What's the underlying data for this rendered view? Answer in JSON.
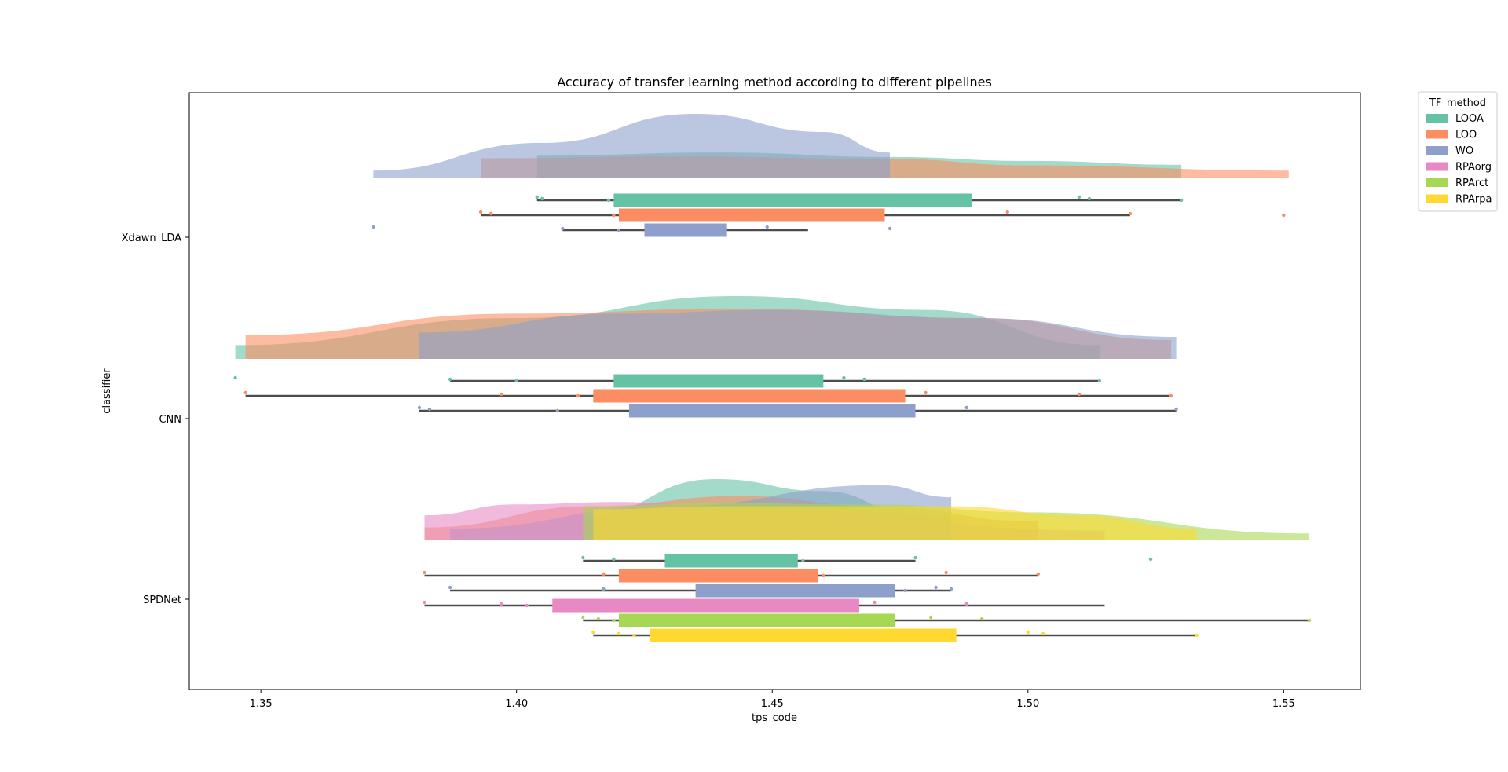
{
  "chart_data": {
    "type": "raincloud",
    "title": "Accuracy of transfer learning method according to different pipelines",
    "xlabel": "tps_code",
    "ylabel": "classifier",
    "xlim": [
      1.336,
      1.565
    ],
    "xticks": [
      1.35,
      1.4,
      1.45,
      1.5,
      1.55
    ],
    "xtick_labels": [
      "1.35",
      "1.40",
      "1.45",
      "1.50",
      "1.55"
    ],
    "categories": [
      "Xdawn_LDA",
      "CNN",
      "SPDNet"
    ],
    "legend": {
      "title": "TF_method",
      "position": "outside-top-right",
      "entries": [
        {
          "name": "LOOA",
          "color": "#66c2a5"
        },
        {
          "name": "LOO",
          "color": "#fc8d62"
        },
        {
          "name": "WO",
          "color": "#8da0cb"
        },
        {
          "name": "RPAorg",
          "color": "#e78ac3"
        },
        {
          "name": "RPArct",
          "color": "#a6d854"
        },
        {
          "name": "RPArpa",
          "color": "#ffd92f"
        }
      ]
    },
    "groups": [
      {
        "classifier": "Xdawn_LDA",
        "series": [
          {
            "name": "LOOA",
            "min": 1.404,
            "q1": 1.419,
            "q3": 1.489,
            "max": 1.53,
            "points": [
              1.404,
              1.405,
              1.418,
              1.51,
              1.512,
              1.53
            ],
            "density": [
              [
                1.404,
                0.35
              ],
              [
                1.44,
                0.4
              ],
              [
                1.473,
                0.33
              ],
              [
                1.5,
                0.27
              ],
              [
                1.53,
                0.21
              ]
            ]
          },
          {
            "name": "LOO",
            "min": 1.393,
            "q1": 1.42,
            "q3": 1.472,
            "max": 1.52,
            "points": [
              1.393,
              1.395,
              1.419,
              1.496,
              1.52,
              1.55
            ],
            "density": [
              [
                1.393,
                0.31
              ],
              [
                1.43,
                0.34
              ],
              [
                1.473,
                0.3
              ],
              [
                1.5,
                0.2
              ],
              [
                1.551,
                0.12
              ]
            ]
          },
          {
            "name": "WO",
            "min": 1.409,
            "q1": 1.425,
            "q3": 1.441,
            "max": 1.457,
            "points": [
              1.372,
              1.409,
              1.42,
              1.449,
              1.473
            ],
            "density": [
              [
                1.372,
                0.12
              ],
              [
                1.405,
                0.55
              ],
              [
                1.435,
                1.0
              ],
              [
                1.46,
                0.72
              ],
              [
                1.473,
                0.4
              ]
            ]
          }
        ]
      },
      {
        "classifier": "CNN",
        "series": [
          {
            "name": "LOOA",
            "min": 1.387,
            "q1": 1.419,
            "q3": 1.46,
            "max": 1.514,
            "points": [
              1.345,
              1.387,
              1.4,
              1.464,
              1.468,
              1.514
            ],
            "density": [
              [
                1.345,
                0.22
              ],
              [
                1.4,
                0.65
              ],
              [
                1.443,
                1.0
              ],
              [
                1.48,
                0.78
              ],
              [
                1.514,
                0.22
              ]
            ]
          },
          {
            "name": "LOO",
            "min": 1.347,
            "q1": 1.415,
            "q3": 1.476,
            "max": 1.528,
            "points": [
              1.347,
              1.397,
              1.412,
              1.48,
              1.51,
              1.528
            ],
            "density": [
              [
                1.347,
                0.38
              ],
              [
                1.4,
                0.72
              ],
              [
                1.443,
                0.8
              ],
              [
                1.49,
                0.65
              ],
              [
                1.528,
                0.3
              ]
            ]
          },
          {
            "name": "WO",
            "min": 1.381,
            "q1": 1.422,
            "q3": 1.478,
            "max": 1.529,
            "points": [
              1.381,
              1.383,
              1.408,
              1.488,
              1.529
            ],
            "density": [
              [
                1.381,
                0.42
              ],
              [
                1.42,
                0.72
              ],
              [
                1.45,
                0.78
              ],
              [
                1.49,
                0.65
              ],
              [
                1.529,
                0.35
              ]
            ]
          }
        ]
      },
      {
        "classifier": "SPDNet",
        "series": [
          {
            "name": "LOOA",
            "min": 1.413,
            "q1": 1.429,
            "q3": 1.455,
            "max": 1.478,
            "points": [
              1.413,
              1.419,
              1.456,
              1.478,
              1.524
            ],
            "density": [
              [
                1.413,
                0.38
              ],
              [
                1.439,
                1.0
              ],
              [
                1.46,
                0.8
              ],
              [
                1.478,
                0.4
              ],
              [
                1.485,
                0.38
              ]
            ]
          },
          {
            "name": "LOO",
            "min": 1.382,
            "q1": 1.42,
            "q3": 1.459,
            "max": 1.502,
            "points": [
              1.382,
              1.417,
              1.46,
              1.484,
              1.502
            ],
            "density": [
              [
                1.382,
                0.2
              ],
              [
                1.415,
                0.55
              ],
              [
                1.444,
                0.72
              ],
              [
                1.47,
                0.55
              ],
              [
                1.502,
                0.3
              ]
            ]
          },
          {
            "name": "WO",
            "min": 1.387,
            "q1": 1.435,
            "q3": 1.474,
            "max": 1.485,
            "points": [
              1.387,
              1.417,
              1.476,
              1.482,
              1.485
            ],
            "density": [
              [
                1.387,
                0.18
              ],
              [
                1.43,
                0.55
              ],
              [
                1.471,
                0.9
              ],
              [
                1.485,
                0.7
              ]
            ]
          },
          {
            "name": "RPAorg",
            "min": 1.382,
            "q1": 1.407,
            "q3": 1.467,
            "max": 1.515,
            "points": [
              1.382,
              1.397,
              1.402,
              1.47,
              1.488
            ],
            "density": [
              [
                1.382,
                0.4
              ],
              [
                1.4,
                0.58
              ],
              [
                1.42,
                0.62
              ],
              [
                1.45,
                0.45
              ],
              [
                1.515,
                0.15
              ]
            ]
          },
          {
            "name": "RPArct",
            "min": 1.413,
            "q1": 1.42,
            "q3": 1.474,
            "max": 1.555,
            "points": [
              1.413,
              1.416,
              1.419,
              1.481,
              1.491,
              1.555
            ],
            "density": [
              [
                1.413,
                0.55
              ],
              [
                1.44,
                0.6
              ],
              [
                1.47,
                0.58
              ],
              [
                1.5,
                0.45
              ],
              [
                1.555,
                0.1
              ]
            ]
          },
          {
            "name": "RPArpa",
            "min": 1.415,
            "q1": 1.426,
            "q3": 1.486,
            "max": 1.533,
            "points": [
              1.415,
              1.42,
              1.423,
              1.5,
              1.503,
              1.533
            ],
            "density": [
              [
                1.415,
                0.5
              ],
              [
                1.44,
                0.55
              ],
              [
                1.485,
                0.55
              ],
              [
                1.51,
                0.4
              ],
              [
                1.533,
                0.18
              ]
            ]
          }
        ]
      }
    ]
  }
}
